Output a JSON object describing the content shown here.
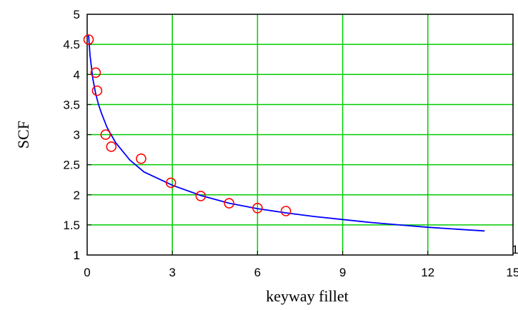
{
  "chart_data": {
    "type": "scatter",
    "title": "",
    "xlabel": "keyway fillet",
    "ylabel": "SCF",
    "xlim": [
      0,
      15
    ],
    "ylim": [
      1,
      5
    ],
    "x_ticks": [
      "0",
      "3",
      "6",
      "9",
      "12",
      "15"
    ],
    "y_ticks": [
      "1",
      "1.5",
      "2",
      "2.5",
      "3",
      "3.5",
      "4",
      "4.5",
      "5"
    ],
    "corner_marks": [
      "1",
      "1"
    ],
    "grid": true,
    "legend": "none",
    "series": [
      {
        "kind": "points",
        "marker": "open-circle",
        "color": "#ff0000",
        "x": [
          0.05,
          0.3,
          0.35,
          0.65,
          0.85,
          1.9,
          2.95,
          4.0,
          5.0,
          6.0,
          7.0
        ],
        "y": [
          4.58,
          4.03,
          3.73,
          3.0,
          2.8,
          2.6,
          2.2,
          1.98,
          1.86,
          1.78,
          1.73
        ]
      },
      {
        "kind": "fit-line",
        "color": "#0000ff",
        "x": [
          0.05,
          0.1,
          0.2,
          0.3,
          0.4,
          0.5,
          0.7,
          1.0,
          1.5,
          2.0,
          3.0,
          4.0,
          5.0,
          6.0,
          7.0,
          8.0,
          9.0,
          10.0,
          11.0,
          12.0,
          13.0,
          14.0
        ],
        "y": [
          4.65,
          4.32,
          3.93,
          3.68,
          3.5,
          3.36,
          3.12,
          2.87,
          2.58,
          2.38,
          2.16,
          1.99,
          1.86,
          1.77,
          1.7,
          1.64,
          1.59,
          1.54,
          1.5,
          1.46,
          1.43,
          1.4
        ]
      }
    ],
    "colors": {
      "grid": "#00cc00",
      "axis": "#000000",
      "points": "#ff0000",
      "line": "#0000ff"
    }
  }
}
